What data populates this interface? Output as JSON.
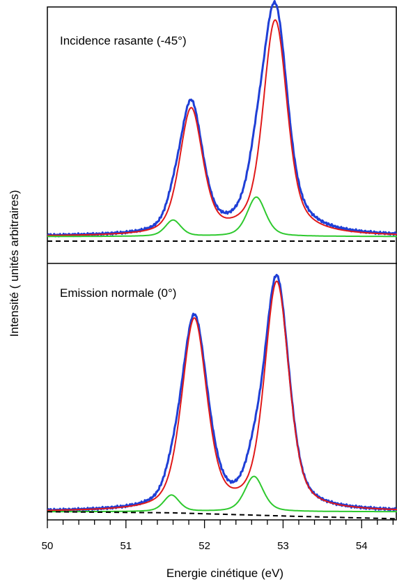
{
  "chart_data": {
    "type": "line",
    "xlabel": "Energie cinétique (eV)",
    "ylabel": "Intensité ( unités arbitraires)",
    "xlim": [
      50,
      54.45
    ],
    "x_ticks": [
      "50",
      "51",
      "52",
      "53",
      "54"
    ],
    "grid": false,
    "legend": "none",
    "panels": [
      {
        "label": "Incidence rasante (-45°)",
        "baseline": 0.02,
        "series": [
          {
            "role": "experimental",
            "color": "#1f3fd6",
            "style": "solid-noisy",
            "peaks": [
              {
                "x": 51.83,
                "amp": 0.56,
                "w": 0.15,
                "g": 0.17
              },
              {
                "x": 52.9,
                "amp": 0.97,
                "w": 0.14,
                "g": 0.24
              },
              {
                "x": 51.6,
                "amp": 0.06,
                "w": 0.1,
                "g": 0.12
              },
              {
                "x": 52.66,
                "amp": 0.18,
                "w": 0.12,
                "g": 0.14
              }
            ]
          },
          {
            "role": "fit-main",
            "color": "#e01919",
            "style": "solid",
            "peaks": [
              {
                "x": 51.83,
                "amp": 0.54,
                "w": 0.15,
                "g": 0.17
              },
              {
                "x": 52.9,
                "amp": 0.93,
                "w": 0.14,
                "g": 0.22
              }
            ]
          },
          {
            "role": "fit-secondary",
            "color": "#2ec92e",
            "style": "solid",
            "peaks": [
              {
                "x": 51.6,
                "amp": 0.07,
                "w": 0.1,
                "g": 0.12
              },
              {
                "x": 52.66,
                "amp": 0.17,
                "w": 0.12,
                "g": 0.14
              }
            ]
          },
          {
            "role": "background",
            "color": "#000000",
            "style": "dashed",
            "line": [
              [
                50,
                0.0
              ],
              [
                54.45,
                0.0
              ]
            ]
          }
        ]
      },
      {
        "label": "Emission normale (0°)",
        "baseline": 0.02,
        "series": [
          {
            "role": "experimental",
            "color": "#1f3fd6",
            "style": "solid-noisy",
            "peaks": [
              {
                "x": 51.87,
                "amp": 0.82,
                "w": 0.17,
                "g": 0.2
              },
              {
                "x": 52.92,
                "amp": 0.98,
                "w": 0.15,
                "g": 0.2
              },
              {
                "x": 51.58,
                "amp": 0.05,
                "w": 0.1,
                "g": 0.12
              },
              {
                "x": 52.63,
                "amp": 0.12,
                "w": 0.12,
                "g": 0.14
              }
            ]
          },
          {
            "role": "fit-main",
            "color": "#e01919",
            "style": "solid",
            "peaks": [
              {
                "x": 51.87,
                "amp": 0.81,
                "w": 0.16,
                "g": 0.19
              },
              {
                "x": 52.92,
                "amp": 0.97,
                "w": 0.15,
                "g": 0.2
              }
            ]
          },
          {
            "role": "fit-secondary",
            "color": "#2ec92e",
            "style": "solid",
            "peaks": [
              {
                "x": 51.58,
                "amp": 0.07,
                "w": 0.1,
                "g": 0.12
              },
              {
                "x": 52.63,
                "amp": 0.15,
                "w": 0.12,
                "g": 0.14
              }
            ]
          },
          {
            "role": "background",
            "color": "#000000",
            "style": "dashed",
            "line": [
              [
                50,
                0.02
              ],
              [
                51.6,
                0.015
              ],
              [
                53.2,
                0.0
              ],
              [
                54.45,
                -0.01
              ]
            ]
          }
        ]
      }
    ]
  }
}
